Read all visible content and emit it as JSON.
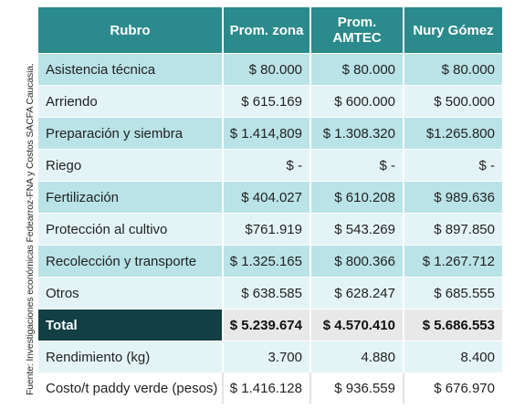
{
  "source_note": "Fuente: Investigaciones económicas Fedearroz-FNA y Costos SACFA Caucasia.",
  "table": {
    "headers": {
      "rubro": "Rubro",
      "zona": "Prom. zona",
      "amtec": "Prom. AMTEC",
      "nury": "Nury Gómez"
    },
    "rows": [
      {
        "rubro": "Asistencia técnica",
        "zona": "$ 80.000",
        "amtec": "$ 80.000",
        "nury": "$ 80.000"
      },
      {
        "rubro": "Arriendo",
        "zona": "$ 615.169",
        "amtec": "$ 600.000",
        "nury": "$ 500.000"
      },
      {
        "rubro": "Preparación y siembra",
        "zona": "$ 1.414,809",
        "amtec": "$ 1.308.320",
        "nury": "$1.265.800"
      },
      {
        "rubro": "Riego",
        "zona": "$ -",
        "amtec": "$ -",
        "nury": "$ -"
      },
      {
        "rubro": "Fertilización",
        "zona": "$ 404.027",
        "amtec": "$ 610.208",
        "nury": "$ 989.636"
      },
      {
        "rubro": "Protección al cultivo",
        "zona": "$761.919",
        "amtec": "$ 543.269",
        "nury": "$ 897.850"
      },
      {
        "rubro": "Recolección y transporte",
        "zona": "$ 1.325.165",
        "amtec": "$ 800.366",
        "nury": "$ 1.267.712"
      },
      {
        "rubro": "Otros",
        "zona": "$ 638.585",
        "amtec": "$ 628.247",
        "nury": "$ 685.555"
      }
    ],
    "total": {
      "rubro": "Total",
      "zona": "$ 5.239.674",
      "amtec": "$ 4.570.410",
      "nury": "$ 5.686.553"
    },
    "extra_rows": [
      {
        "rubro": "Rendimiento (kg)",
        "zona": "3.700",
        "amtec": "4.880",
        "nury": "8.400"
      },
      {
        "rubro": "Costo/t paddy verde (pesos)",
        "zona": "$ 1.416.128",
        "amtec": "$ 936.559",
        "nury": "$ 676.970"
      }
    ]
  }
}
